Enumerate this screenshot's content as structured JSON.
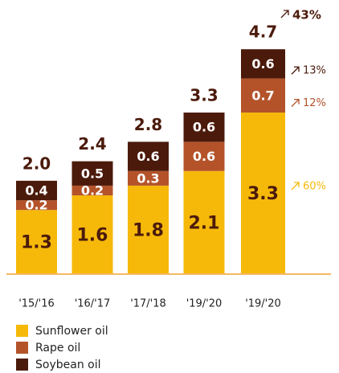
{
  "chart_data": {
    "type": "stacked_bar",
    "categories": [
      "'15/'16",
      "'16/'17",
      "'17/'18",
      "'19/'20",
      "'19/'20"
    ],
    "series": [
      {
        "name": "Sunflower oil",
        "color": "#f6b90a",
        "values": [
          1.3,
          1.6,
          1.8,
          2.1,
          3.3
        ],
        "growth": "60%"
      },
      {
        "name": "Rape oil",
        "color": "#b4532a",
        "values": [
          0.2,
          0.2,
          0.3,
          0.6,
          0.7
        ],
        "growth": "12%"
      },
      {
        "name": "Soybean oil",
        "color": "#4b1a0b",
        "values": [
          0.4,
          0.5,
          0.6,
          0.6,
          0.6
        ],
        "growth": "13%"
      }
    ],
    "totals": {
      "values": [
        2.0,
        2.4,
        2.8,
        3.3,
        4.7
      ],
      "value_labels": [
        "2.0",
        "2.4",
        "2.8",
        "3.3",
        "4.7"
      ]
    },
    "total_growth": "43%"
  }
}
